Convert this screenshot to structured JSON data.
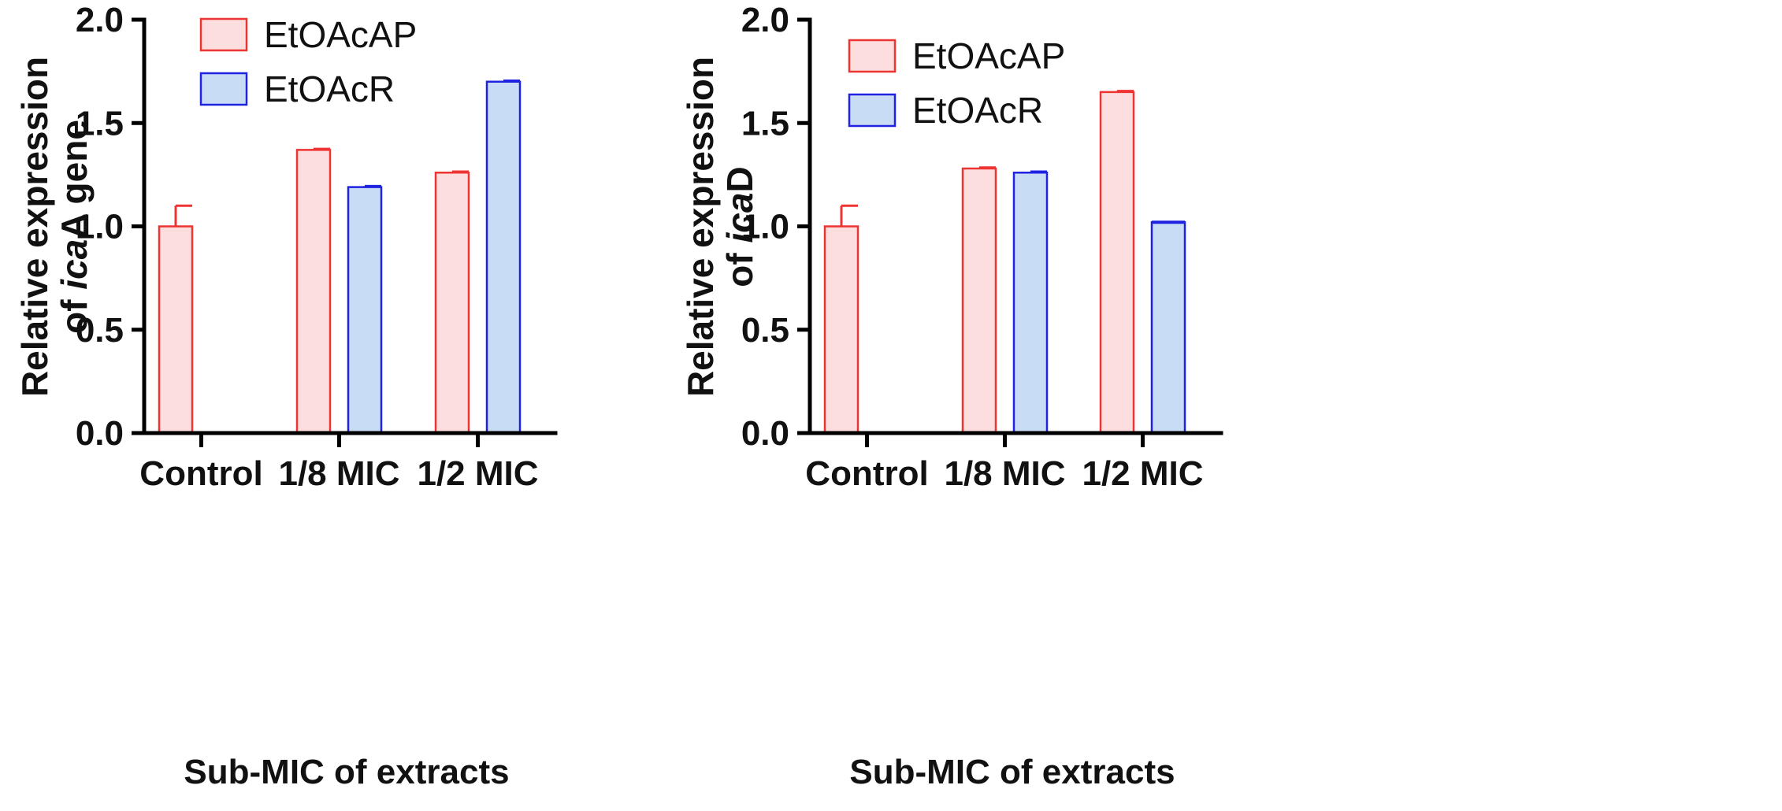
{
  "chart_data": [
    {
      "type": "bar",
      "panel": "left",
      "categories": [
        "Control",
        "1/8 MIC",
        "1/2 MIC"
      ],
      "series": [
        {
          "name": "EtOAcAP",
          "values": [
            1.0,
            1.37,
            1.26
          ],
          "errors": [
            0.1,
            0.005,
            0.005
          ],
          "fill": "#fddede",
          "stroke": "#ee3333"
        },
        {
          "name": "EtOAcR",
          "values": [
            null,
            1.19,
            1.7
          ],
          "errors": [
            null,
            0.005,
            0.005
          ],
          "fill": "#c9dcf6",
          "stroke": "#1f22e0"
        }
      ],
      "title": "",
      "ylabel_line1": "Relative expression",
      "ylabel_line2_prefix": "of ",
      "ylabel_line2_italic": "ica",
      "ylabel_line2_suffix": "A gene",
      "xlabel": "Sub-MIC of extracts",
      "ylim": [
        0,
        2.0
      ],
      "yticks": [
        "0.0",
        "0.5",
        "1.0",
        "1.5",
        "2.0"
      ],
      "ytick_values": [
        0,
        0.5,
        1.0,
        1.5,
        2.0
      ],
      "legend_position": "top-left"
    },
    {
      "type": "bar",
      "panel": "right",
      "categories": [
        "Control",
        "1/8 MIC",
        "1/2 MIC"
      ],
      "series": [
        {
          "name": "EtOAcAP",
          "values": [
            1.0,
            1.28,
            1.65
          ],
          "errors": [
            0.1,
            0.005,
            0.005
          ],
          "fill": "#fddede",
          "stroke": "#ee3333"
        },
        {
          "name": "EtOAcR",
          "values": [
            null,
            1.26,
            1.02
          ],
          "errors": [
            null,
            0.005,
            0.0
          ],
          "fill": "#c9dcf6",
          "stroke": "#1f22e0"
        }
      ],
      "title": "",
      "ylabel_line1": "Relative expression",
      "ylabel_line2_prefix": "of ",
      "ylabel_line2_italic": "ica",
      "ylabel_line2_suffix": "D",
      "xlabel": "Sub-MIC of extracts",
      "ylim": [
        0,
        2.0
      ],
      "yticks": [
        "0.0",
        "0.5",
        "1.0",
        "1.5",
        "2.0"
      ],
      "ytick_values": [
        0,
        0.5,
        1.0,
        1.5,
        2.0
      ],
      "legend_position": "top-left"
    }
  ]
}
